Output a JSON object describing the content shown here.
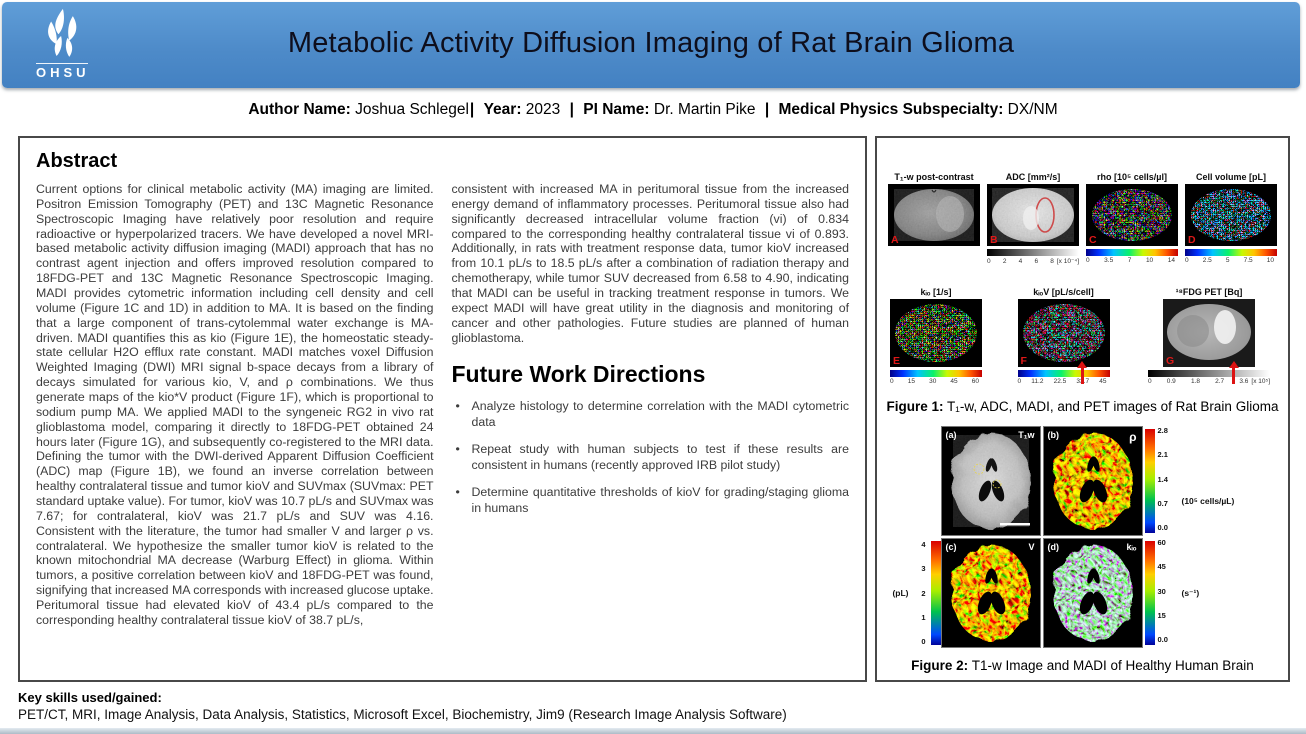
{
  "colors": {
    "header_blue_top": "#609ed8",
    "header_blue_bottom": "#4381c2",
    "accent_red": "#dd1313",
    "title_color": "#0e0e1c"
  },
  "header": {
    "logo_text": "OHSU",
    "title": "Metabolic Activity Diffusion Imaging of Rat Brain Glioma"
  },
  "byline": {
    "author_label": "Author Name:",
    "author": "Joshua Schlegel",
    "sep1": "|",
    "year_label": "Year:",
    "year": "2023",
    "sep2": "|",
    "pi_label": "PI Name:",
    "pi": "Dr. Martin Pike",
    "sep3": "|",
    "subspecialty_label": "Medical Physics Subspecialty:",
    "subspecialty": "DX/NM"
  },
  "abstract": {
    "heading": "Abstract",
    "col1": "Current options for clinical metabolic activity (MA) imaging are limited. Positron Emission Tomography (PET) and 13C Magnetic Resonance Spectroscopic Imaging have relatively poor resolution and require radioactive or hyperpolarized tracers. We have developed a novel MRI-based metabolic activity diffusion imaging (MADI) approach that has no contrast agent injection and offers improved resolution compared to 18FDG-PET and 13C Magnetic Resonance Spectroscopic Imaging. MADI provides cytometric information including cell density and cell volume (Figure 1C and 1D) in addition to MA. It is based on the finding that a large component of trans-cytolemmal water exchange is MA-driven. MADI quantifies this as kio (Figure 1E), the homeostatic steady-state cellular H2O efflux rate constant. MADI matches voxel Diffusion Weighted Imaging (DWI) MRI signal b-space decays from a library of decays simulated for various kio, V, and ρ combinations. We thus generate maps of the kio*V product (Figure 1F), which is proportional to sodium pump MA. We applied MADI to the syngeneic RG2 in vivo rat glioblastoma model, comparing it directly to 18FDG-PET obtained 24 hours later (Figure 1G), and subsequently co-registered to the MRI data. Defining the tumor with the DWI-derived Apparent Diffusion Coefficient (ADC) map (Figure 1B), we found an inverse correlation between healthy contralateral tissue and tumor kioV and SUVmax (SUVmax: PET standard uptake value). For tumor, kioV was 10.7 pL/s and SUVmax was 7.67; for contralateral, kioV was 21.7 pL/s and SUV was 4.16. Consistent with the literature, the tumor had smaller V and larger ρ vs. contralateral. We hypothesize the smaller tumor kioV is related to the known mitochondrial MA decrease (Warburg Effect) in glioma.  Within tumors, a positive correlation between kioV and 18FDG-PET was found, signifying that increased MA corresponds with increased glucose uptake. Peritumoral tissue had elevated kioV of 43.4 pL/s compared to the corresponding healthy contralateral tissue kioV of 38.7 pL/s,",
    "col2": "consistent with increased MA in peritumoral tissue from the increased energy demand of inflammatory processes. Peritumoral tissue also had significantly decreased intracellular volume fraction (vi) of 0.834 compared to the corresponding healthy contralateral tissue vi of 0.893. Additionally, in rats with treatment response data, tumor kioV increased from 10.1 pL/s to 18.5 pL/s after a combination of radiation therapy and chemotherapy, while tumor SUV decreased from 6.58 to 4.90, indicating that MADI can be useful in tracking treatment response in tumors. We expect MADI will have great utility in the diagnosis and monitoring of cancer and other pathologies.  Future studies are planned of human glioblastoma."
  },
  "future_work": {
    "heading": "Future Work Directions",
    "bullets": [
      "Analyze histology to determine correlation with the MADI cytometric data",
      "Repeat study with human subjects to test if these results are consistent in humans (recently approved IRB pilot study)",
      "Determine quantitative thresholds of kioV for grading/staging glioma in humans"
    ]
  },
  "figure1": {
    "panelA": {
      "label": "A",
      "title": "T₁-w post-contrast"
    },
    "panelB": {
      "label": "B",
      "title": "ADC [mm²/s]",
      "ticks": [
        "0",
        "2",
        "4",
        "6",
        "8"
      ],
      "unit": "[x 10⁻⁴]"
    },
    "panelC": {
      "label": "C",
      "title": "rho [10⁵ cells/µl]",
      "ticks": [
        "0",
        "3.5",
        "7",
        "10",
        "14"
      ]
    },
    "panelD": {
      "label": "D",
      "title": "Cell volume [pL]",
      "ticks": [
        "0",
        "2.5",
        "5",
        "7.5",
        "10"
      ]
    },
    "panelE": {
      "label": "E",
      "title": "kᵢₒ [1/s]",
      "ticks": [
        "0",
        "15",
        "30",
        "45",
        "60"
      ]
    },
    "panelF": {
      "label": "F",
      "title": "kᵢₒV [pL/s/cell]",
      "ticks": [
        "0",
        "11.2",
        "22.5",
        "33.7",
        "45"
      ]
    },
    "panelG": {
      "label": "G",
      "title": "¹⁸FDG PET [Bq]",
      "ticks": [
        "0",
        "0.9",
        "1.8",
        "2.7",
        "3.6"
      ],
      "unit": "[x 10⁵]"
    },
    "caption_label": "Figure 1:",
    "caption": " T₁-w, ADC, MADI, and PET images of Rat Brain Glioma"
  },
  "figure2": {
    "panelA": {
      "corner": "(a)",
      "tag": "T₁w"
    },
    "panelB": {
      "corner": "(b)",
      "tag": "ρ",
      "ticks": [
        "2.8",
        "2.1",
        "1.4",
        "0.7",
        "0.0"
      ],
      "unit": "(10⁵ cells/µL)"
    },
    "panelC": {
      "corner": "(c)",
      "tag": "V",
      "ticks": [
        "4",
        "3",
        "2",
        "1",
        "0"
      ],
      "unit": "(pL)"
    },
    "panelD": {
      "corner": "(d)",
      "tag": "kᵢₒ",
      "ticks": [
        "60",
        "45",
        "30",
        "15",
        "0.0"
      ],
      "unit": "(s⁻¹)"
    },
    "caption_label": "Figure 2:",
    "caption": " T1-w Image and MADI of Healthy Human Brain"
  },
  "footer": {
    "skills_label": "Key skills used/gained:",
    "skills": "PET/CT, MRI, Image Analysis, Data Analysis, Statistics, Microsoft Excel, Biochemistry, Jim9 (Research Image Analysis Software)"
  }
}
